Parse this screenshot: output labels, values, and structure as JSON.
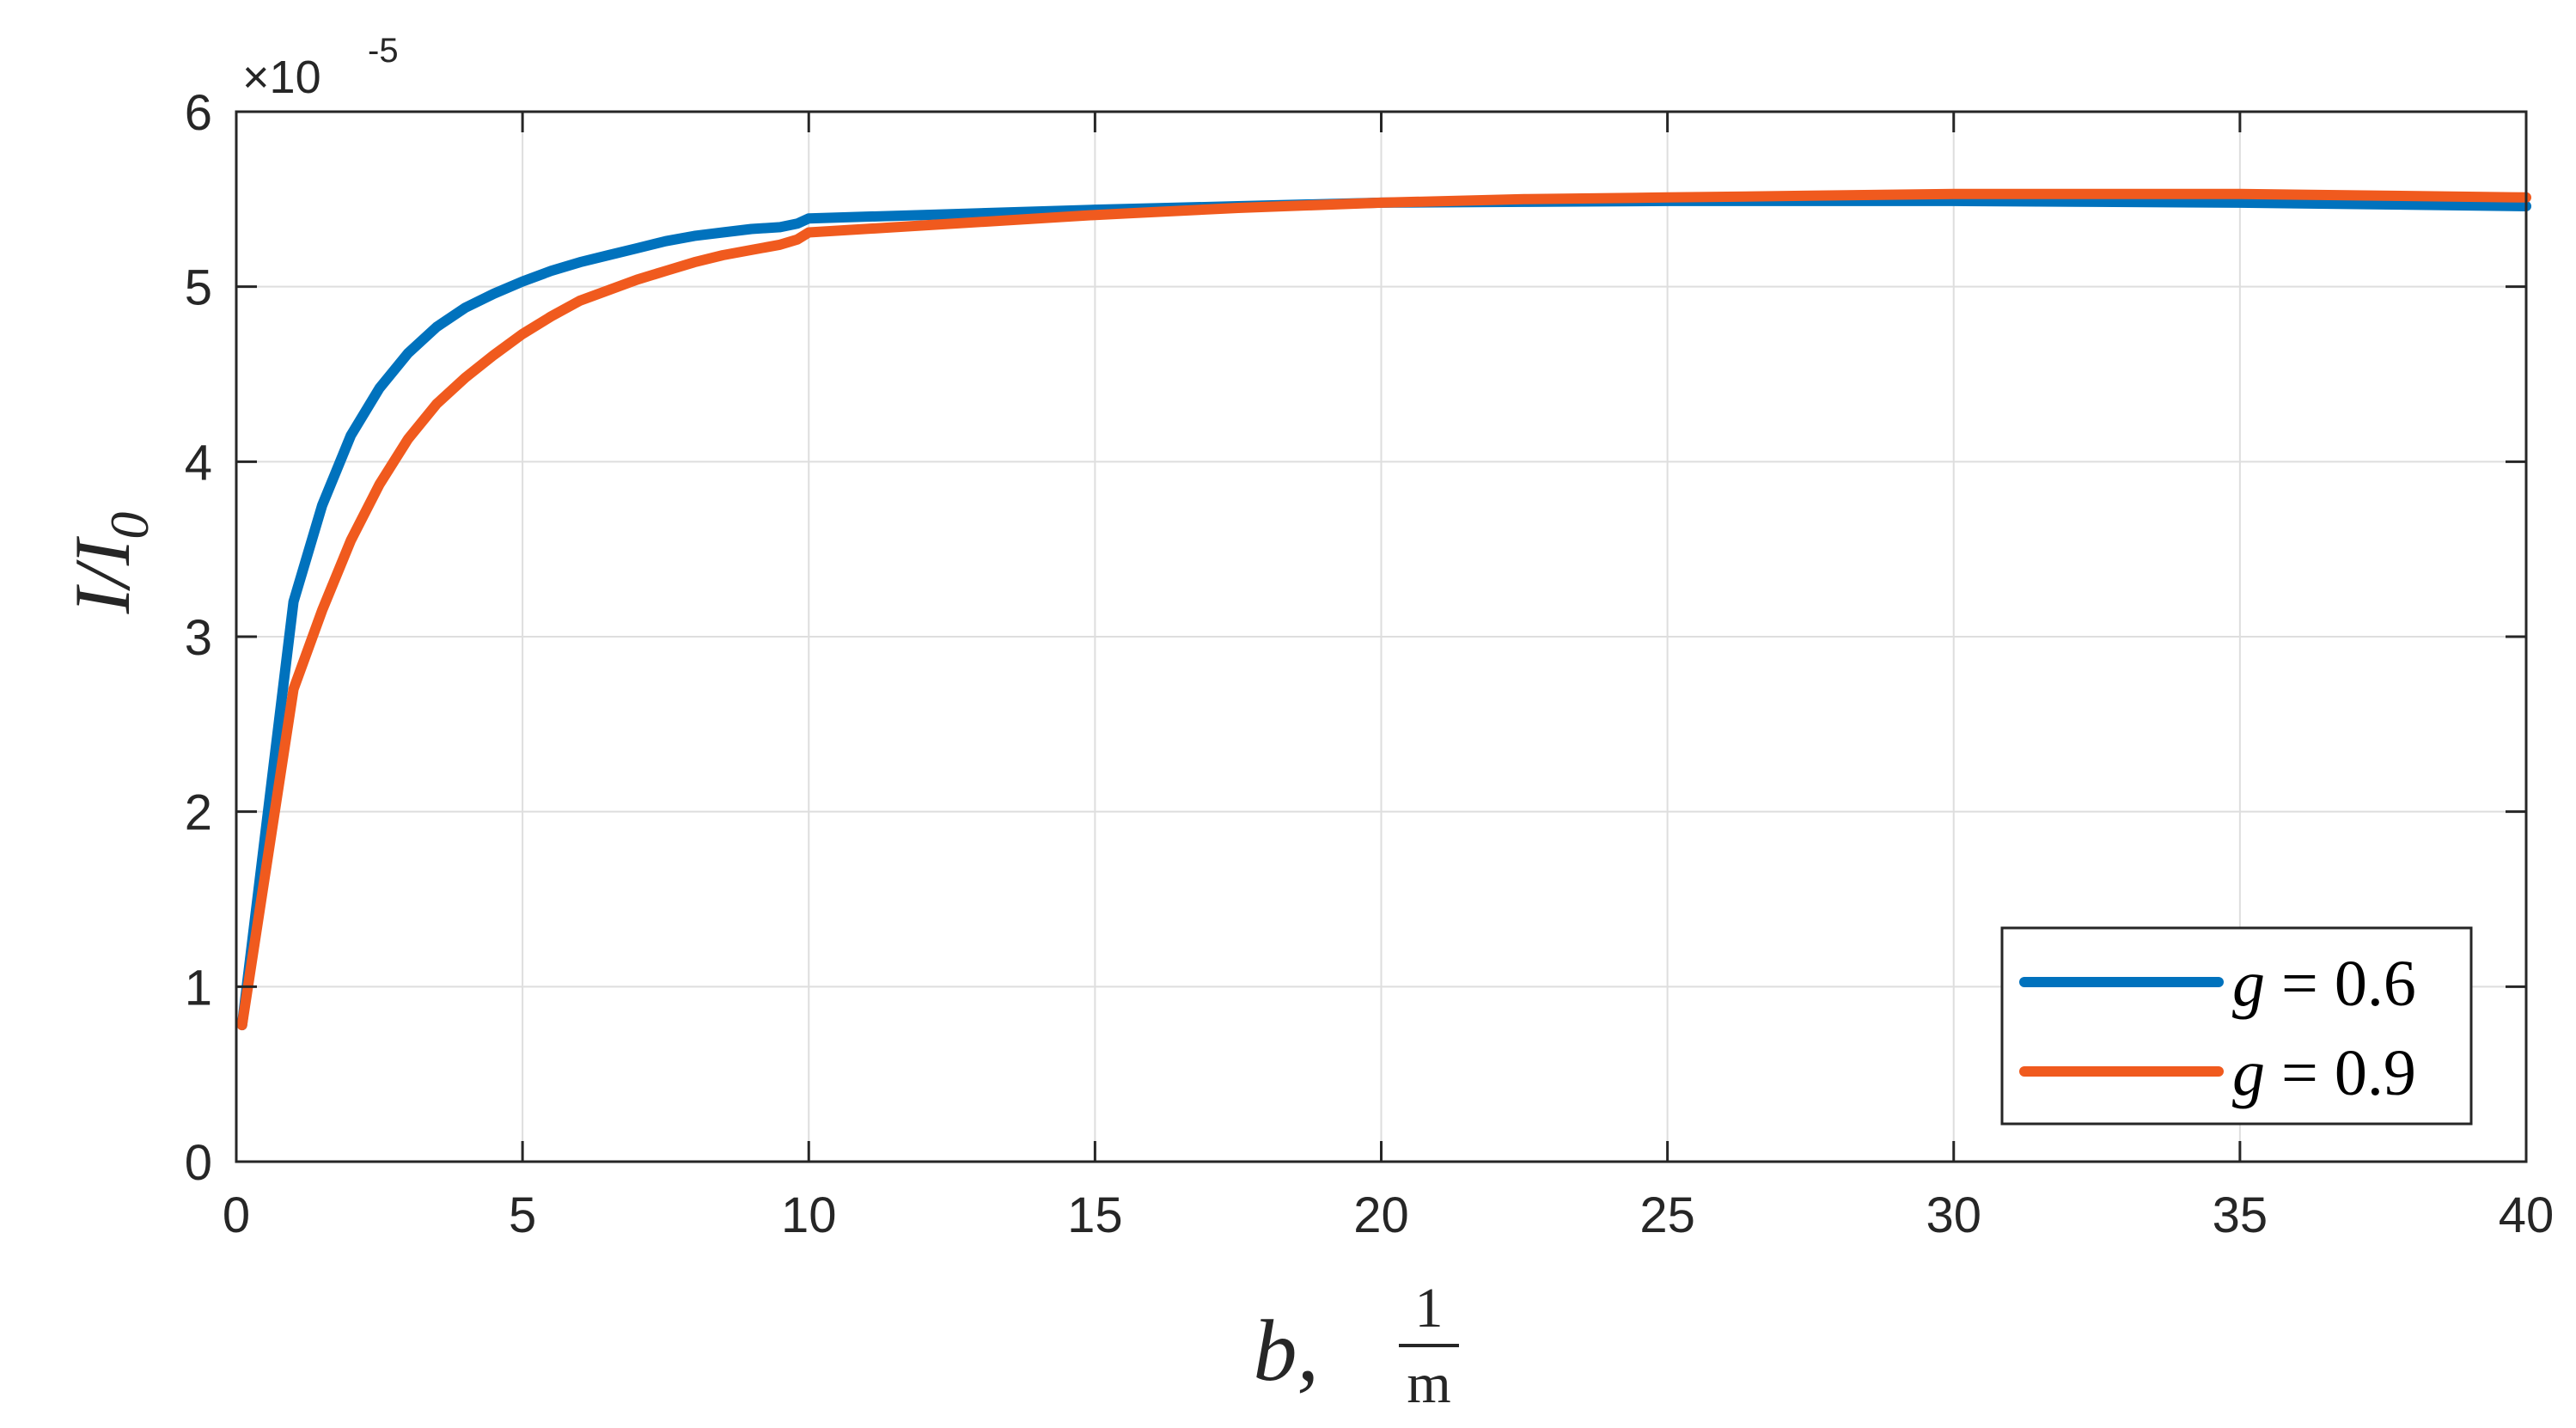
{
  "chart_data": {
    "type": "line",
    "xlabel": "b,",
    "xlabel_fraction": {
      "numerator": "1",
      "denominator": "m"
    },
    "ylabel": "I/I",
    "ylabel_subscript": "0",
    "y_multiplier": {
      "base": "×10",
      "exponent": "-5"
    },
    "xlim": [
      0,
      40
    ],
    "ylim": [
      0,
      6
    ],
    "x_ticks": [
      0,
      5,
      10,
      15,
      20,
      25,
      30,
      35,
      40
    ],
    "y_ticks": [
      0,
      1,
      2,
      3,
      4,
      5,
      6
    ],
    "grid": true,
    "legend_position": "bottom-right",
    "series": [
      {
        "name": "g = 0.6",
        "legend_var": "g",
        "legend_rest": " = 0.6",
        "color": "#0072BD",
        "x": [
          0.1,
          1,
          1.5,
          2,
          2.5,
          3,
          3.5,
          4,
          4.5,
          5,
          5.5,
          6,
          6.5,
          7,
          7.5,
          8,
          8.5,
          9,
          9.5,
          9.8,
          10,
          12,
          15,
          17.5,
          20,
          22.5,
          25,
          27.5,
          30,
          32.5,
          35,
          37.5,
          40
        ],
        "y": [
          0.78,
          3.2,
          3.75,
          4.15,
          4.42,
          4.62,
          4.77,
          4.88,
          4.96,
          5.03,
          5.09,
          5.14,
          5.18,
          5.22,
          5.26,
          5.29,
          5.31,
          5.33,
          5.34,
          5.36,
          5.39,
          5.41,
          5.44,
          5.46,
          5.48,
          5.485,
          5.49,
          5.49,
          5.49,
          5.485,
          5.48,
          5.47,
          5.46
        ]
      },
      {
        "name": "g = 0.9",
        "legend_var": "g",
        "legend_rest": " = 0.9",
        "color": "#F05A1E",
        "x": [
          0.1,
          1,
          1.5,
          2,
          2.5,
          3,
          3.5,
          4,
          4.5,
          5,
          5.5,
          6,
          6.5,
          7,
          7.5,
          8,
          8.5,
          9,
          9.5,
          9.8,
          10,
          12,
          15,
          17.5,
          20,
          22.5,
          25,
          27.5,
          30,
          32.5,
          35,
          37.5,
          40
        ],
        "y": [
          0.78,
          2.7,
          3.15,
          3.55,
          3.87,
          4.13,
          4.33,
          4.48,
          4.61,
          4.73,
          4.83,
          4.92,
          4.98,
          5.04,
          5.09,
          5.14,
          5.18,
          5.21,
          5.24,
          5.27,
          5.31,
          5.35,
          5.41,
          5.45,
          5.48,
          5.5,
          5.51,
          5.52,
          5.53,
          5.53,
          5.53,
          5.52,
          5.51
        ]
      }
    ]
  }
}
